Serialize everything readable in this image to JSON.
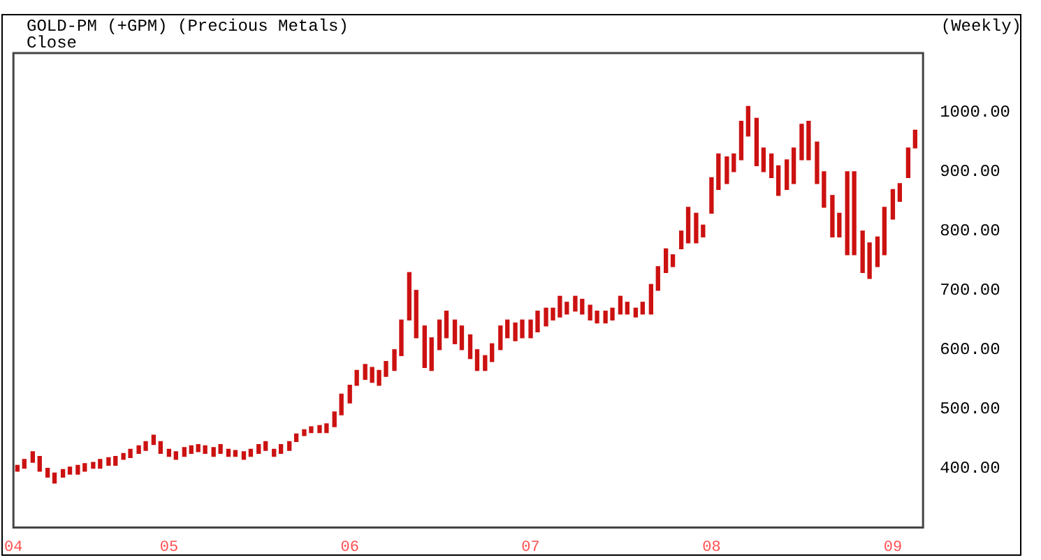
{
  "chart_data": {
    "type": "bar",
    "title": "GOLD-PM (+GPM) (Precious Metals)",
    "subtitle": "Close",
    "annotations": [
      "(Weekly)"
    ],
    "color": "#cc1111",
    "x": [
      "2004-03-01",
      "2004-03-15",
      "2004-04-01",
      "2004-04-15",
      "2004-05-01",
      "2004-05-15",
      "2004-06-01",
      "2004-06-15",
      "2004-07-01",
      "2004-07-15",
      "2004-08-01",
      "2004-08-15",
      "2004-09-01",
      "2004-09-15",
      "2004-10-01",
      "2004-10-15",
      "2004-11-01",
      "2004-11-15",
      "2004-12-01",
      "2004-12-15",
      "2005-01-01",
      "2005-01-15",
      "2005-02-01",
      "2005-02-15",
      "2005-03-01",
      "2005-03-15",
      "2005-04-01",
      "2005-04-15",
      "2005-05-01",
      "2005-05-15",
      "2005-06-01",
      "2005-06-15",
      "2005-07-01",
      "2005-07-15",
      "2005-08-01",
      "2005-08-15",
      "2005-09-01",
      "2005-09-15",
      "2005-10-01",
      "2005-10-15",
      "2005-11-01",
      "2005-11-15",
      "2005-12-01",
      "2005-12-15",
      "2006-01-01",
      "2006-01-15",
      "2006-02-01",
      "2006-02-15",
      "2006-03-01",
      "2006-03-15",
      "2006-04-01",
      "2006-04-15",
      "2006-05-01",
      "2006-05-15",
      "2006-06-01",
      "2006-06-15",
      "2006-07-01",
      "2006-07-15",
      "2006-08-01",
      "2006-08-15",
      "2006-09-01",
      "2006-09-15",
      "2006-10-01",
      "2006-10-15",
      "2006-11-01",
      "2006-11-15",
      "2006-12-01",
      "2006-12-15",
      "2007-01-01",
      "2007-01-15",
      "2007-02-01",
      "2007-02-15",
      "2007-03-01",
      "2007-03-15",
      "2007-04-01",
      "2007-04-15",
      "2007-05-01",
      "2007-05-15",
      "2007-06-01",
      "2007-06-15",
      "2007-07-01",
      "2007-07-15",
      "2007-08-01",
      "2007-08-15",
      "2007-09-01",
      "2007-09-15",
      "2007-10-01",
      "2007-10-15",
      "2007-11-01",
      "2007-11-15",
      "2007-12-01",
      "2007-12-15",
      "2008-01-01",
      "2008-01-15",
      "2008-02-01",
      "2008-02-15",
      "2008-03-01",
      "2008-03-15",
      "2008-04-01",
      "2008-04-15",
      "2008-05-01",
      "2008-05-15",
      "2008-06-01",
      "2008-06-15",
      "2008-07-01",
      "2008-07-15",
      "2008-08-01",
      "2008-08-15",
      "2008-09-01",
      "2008-09-15",
      "2008-10-01",
      "2008-10-15",
      "2008-11-01",
      "2008-11-15",
      "2008-12-01",
      "2008-12-15",
      "2009-01-01",
      "2009-01-15",
      "2009-02-01",
      "2009-02-15"
    ],
    "base": [
      395,
      400,
      410,
      395,
      385,
      375,
      385,
      390,
      390,
      395,
      400,
      400,
      405,
      405,
      415,
      418,
      425,
      430,
      440,
      425,
      420,
      415,
      420,
      425,
      428,
      425,
      420,
      425,
      420,
      420,
      415,
      420,
      425,
      430,
      420,
      425,
      430,
      445,
      455,
      460,
      460,
      460,
      470,
      490,
      510,
      540,
      550,
      545,
      540,
      555,
      565,
      590,
      650,
      620,
      570,
      565,
      600,
      620,
      610,
      600,
      585,
      565,
      565,
      580,
      600,
      620,
      615,
      620,
      620,
      630,
      640,
      650,
      655,
      660,
      665,
      660,
      650,
      645,
      645,
      650,
      660,
      660,
      655,
      660,
      660,
      700,
      730,
      740,
      770,
      780,
      780,
      790,
      830,
      870,
      880,
      900,
      920,
      960,
      910,
      900,
      890,
      860,
      870,
      880,
      920,
      920,
      880,
      840,
      790,
      790,
      760,
      760,
      730,
      720,
      740,
      760,
      820,
      850,
      890,
      940
    ],
    "values": [
      10,
      15,
      18,
      25,
      15,
      17,
      13,
      12,
      15,
      13,
      10,
      15,
      13,
      15,
      10,
      14,
      13,
      15,
      16,
      20,
      12,
      13,
      15,
      13,
      12,
      13,
      15,
      15,
      12,
      10,
      13,
      12,
      15,
      15,
      12,
      15,
      15,
      13,
      10,
      10,
      12,
      15,
      25,
      35,
      30,
      25,
      25,
      25,
      25,
      25,
      35,
      60,
      80,
      80,
      70,
      55,
      50,
      45,
      40,
      40,
      40,
      35,
      25,
      30,
      40,
      30,
      30,
      30,
      30,
      35,
      30,
      20,
      35,
      20,
      25,
      25,
      25,
      20,
      20,
      20,
      30,
      20,
      15,
      20,
      50,
      40,
      40,
      20,
      30,
      60,
      50,
      20,
      60,
      60,
      45,
      30,
      65,
      50,
      80,
      40,
      40,
      50,
      50,
      60,
      60,
      65,
      70,
      60,
      70,
      40,
      140,
      140,
      70,
      60,
      50,
      80,
      50,
      30,
      50,
      30
    ],
    "xlim": [
      "2004-02-22",
      "2009-03-03"
    ],
    "xticks": [
      {
        "value": "2004-02-22",
        "label": "04"
      },
      {
        "value": "2005-01-01",
        "label": "05"
      },
      {
        "value": "2006-01-01",
        "label": "06"
      },
      {
        "value": "2007-01-01",
        "label": "07"
      },
      {
        "value": "2008-01-01",
        "label": "08"
      },
      {
        "value": "2009-01-01",
        "label": "09"
      }
    ],
    "ylim": [
      300,
      1100
    ],
    "yticks": [
      {
        "value": 400,
        "label": "400.00"
      },
      {
        "value": 500,
        "label": "500.00"
      },
      {
        "value": 600,
        "label": "600.00"
      },
      {
        "value": 700,
        "label": "700.00"
      },
      {
        "value": 800,
        "label": "800.00"
      },
      {
        "value": 900,
        "label": "900.00"
      },
      {
        "value": 1000,
        "label": "1000.00"
      }
    ]
  }
}
